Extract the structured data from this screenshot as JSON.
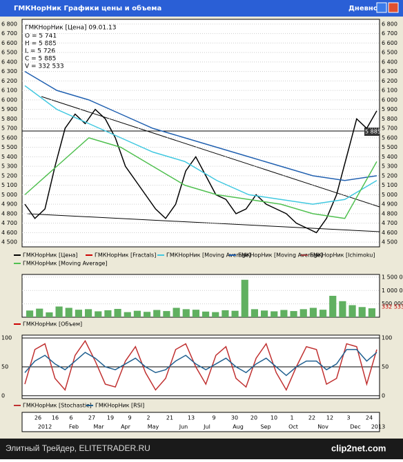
{
  "window": {
    "title": "ГМКНорНик Графики цены и объема",
    "period": "Дневной"
  },
  "info": {
    "header": "ГМКНорНик [Цена] 09.01.13",
    "lines": [
      "O = 5 741",
      "H = 5 885",
      "L = 5 726",
      "C = 5 885",
      "V = 332 533"
    ],
    "last_price": "5 885"
  },
  "legend": [
    "ГМКНорНик [Цена]",
    "ГМКНорНик [Fractals]",
    "ГМКНорНик [Moving Average]",
    "ГМКНорНик [Moving Average]",
    "ГМКНорНик [Ichimoku]",
    "ГМКНорНик [Moving Average]"
  ],
  "chart_data": [
    {
      "type": "line",
      "ylim": [
        4450,
        6850
      ],
      "yticks": [
        {
          "value": 6800,
          "label": "6 800"
        },
        {
          "value": 6700,
          "label": "6 700"
        },
        {
          "value": 6600,
          "label": "6 600"
        },
        {
          "value": 6500,
          "label": "6 500"
        },
        {
          "value": 6400,
          "label": "6 400"
        },
        {
          "value": 6300,
          "label": "6 300"
        },
        {
          "value": 6200,
          "label": "6 200"
        },
        {
          "value": 6100,
          "label": "6 100"
        },
        {
          "value": 6000,
          "label": "6 000"
        },
        {
          "value": 5900,
          "label": "5 900"
        },
        {
          "value": 5800,
          "label": "5 800"
        },
        {
          "value": 5700,
          "label": "5 700"
        },
        {
          "value": 5600,
          "label": "5 600"
        },
        {
          "value": 5500,
          "label": "5 500"
        },
        {
          "value": 5400,
          "label": "5 400"
        },
        {
          "value": 5300,
          "label": "5 300"
        },
        {
          "value": 5200,
          "label": "5 200"
        },
        {
          "value": 5100,
          "label": "5 100"
        },
        {
          "value": 5000,
          "label": "5 000"
        },
        {
          "value": 4900,
          "label": "4 900"
        },
        {
          "value": 4800,
          "label": "4 800"
        },
        {
          "value": 4700,
          "label": "4 700"
        },
        {
          "value": 4600,
          "label": "4 600"
        },
        {
          "value": 4500,
          "label": "4 500"
        }
      ],
      "series": [
        {
          "name": "ГМКНорНик [Цена]",
          "color": "#000000",
          "values": [
            4900,
            4750,
            4850,
            5300,
            5700,
            5850,
            5750,
            5900,
            5800,
            5600,
            5300,
            5150,
            5000,
            4850,
            4750,
            4900,
            5250,
            5400,
            5200,
            5000,
            4950,
            4800,
            4850,
            5000,
            4900,
            4850,
            4800,
            4700,
            4650,
            4600,
            4750,
            5000,
            5400,
            5800,
            5700,
            5885
          ]
        },
        {
          "name": "ГМКНорНик [Moving Average]",
          "color": "#40c8e0",
          "values": [
            6150,
            5900,
            5750,
            5600,
            5450,
            5350,
            5150,
            5000,
            4950,
            4900,
            4950,
            5150
          ]
        },
        {
          "name": "ГМКНорНик [Moving Average]",
          "color": "#2060b0",
          "values": [
            6300,
            6100,
            6000,
            5850,
            5700,
            5600,
            5500,
            5400,
            5300,
            5200,
            5150,
            5200
          ]
        },
        {
          "name": "ГМКНорНик [Moving Average]",
          "color": "#50c050",
          "values": [
            5000,
            5300,
            5600,
            5500,
            5300,
            5100,
            5000,
            4950,
            4900,
            4800,
            4750,
            5350
          ]
        }
      ]
    },
    {
      "type": "bar",
      "name": "ГМКНорНик [Объем]",
      "color": "#60b060",
      "ylim": [
        0,
        1600000
      ],
      "yticks": [
        {
          "value": 500000,
          "label": "500 000"
        },
        {
          "value": 1000000,
          "label": "1 000 000"
        },
        {
          "value": 1500000,
          "label": "1 500 000"
        }
      ],
      "values": [
        250000,
        320000,
        180000,
        400000,
        350000,
        280000,
        300000,
        220000,
        260000,
        310000,
        190000,
        240000,
        200000,
        270000,
        230000,
        350000,
        300000,
        280000,
        210000,
        190000,
        260000,
        240000,
        1400000,
        300000,
        250000,
        220000,
        270000,
        230000,
        300000,
        350000,
        280000,
        800000,
        600000,
        450000,
        380000,
        332533
      ],
      "value_labels": {
        "35": "332 533"
      }
    },
    {
      "type": "line",
      "ylim": [
        -5,
        105
      ],
      "yticks": [
        0,
        50,
        100
      ],
      "series": [
        {
          "name": "ГМКНорНик [Stochastic]",
          "color": "#c03030",
          "values": [
            20,
            80,
            90,
            30,
            10,
            70,
            95,
            60,
            20,
            15,
            60,
            85,
            40,
            10,
            30,
            80,
            90,
            50,
            20,
            70,
            85,
            30,
            15,
            65,
            90,
            40,
            10,
            50,
            85,
            80,
            20,
            30,
            90,
            85,
            20,
            80
          ]
        },
        {
          "name": "ГМКНорНик [RSI]",
          "color": "#206090",
          "values": [
            40,
            60,
            70,
            55,
            45,
            60,
            75,
            65,
            50,
            45,
            55,
            65,
            50,
            40,
            45,
            60,
            70,
            55,
            45,
            55,
            65,
            50,
            40,
            55,
            65,
            50,
            35,
            50,
            60,
            60,
            45,
            55,
            80,
            80,
            60,
            75
          ]
        }
      ]
    }
  ],
  "x_axis": {
    "days": [
      "26",
      "16",
      "6",
      "27",
      "19",
      "9",
      "2",
      "21",
      "13",
      "9",
      "30",
      "20",
      "10",
      "1",
      "22",
      "12",
      "3",
      "24"
    ],
    "months": [
      "2012",
      "Feb",
      "Mar",
      "Apr",
      "May",
      "Jun",
      "Jul",
      "Aug",
      "Sep",
      "Oct",
      "Nov",
      "Dec",
      "2013"
    ]
  },
  "footer": {
    "text": "Элитный Трейдер, ELITETRADER.RU",
    "logo": "clip2net.com"
  }
}
